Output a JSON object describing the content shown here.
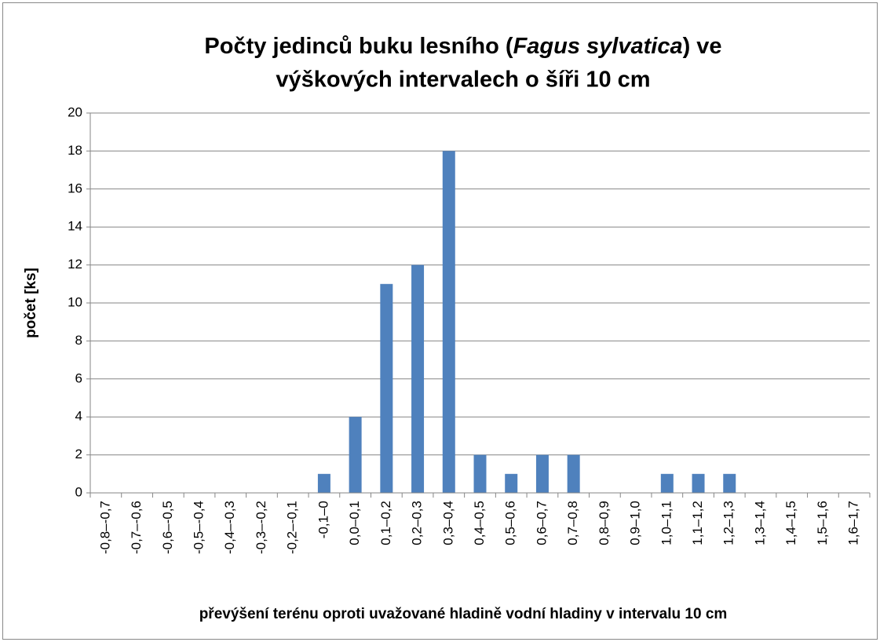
{
  "chart_data": {
    "type": "bar",
    "title_parts": [
      "Počty jedinců buku lesního (",
      "Fagus sylvatica",
      ") ve",
      "výškových intervalech o šíři 10 cm"
    ],
    "x_label": "převýšení terénu oproti uvažované hladině vodní hladiny v intervalu 10 cm",
    "y_label": "počet [ks]",
    "categories": [
      "-0,8–-0,7",
      "-0,7–-0,6",
      "-0,6–-0,5",
      "-0,5–-0,4",
      "-0,4–-0,3",
      "-0,3–-0,2",
      "-0,2–-0,1",
      "-0,1–0",
      "0,0–0,1",
      "0,1–0,2",
      "0,2–0,3",
      "0,3–0,4",
      "0,4–0,5",
      "0,5–0,6",
      "0,6–0,7",
      "0,7–0,8",
      "0,8–0,9",
      "0,9–1,0",
      "1,0–1,1",
      "1,1–1,2",
      "1,2–1,3",
      "1,3–1,4",
      "1,4–1,5",
      "1,5–1,6",
      "1,6–1,7"
    ],
    "values": [
      0,
      0,
      0,
      0,
      0,
      0,
      0,
      1,
      4,
      11,
      12,
      18,
      2,
      1,
      2,
      2,
      0,
      0,
      1,
      1,
      1,
      0,
      0,
      0,
      0
    ],
    "color": "#4f81bd",
    "ylim": [
      0,
      20
    ],
    "yticks": [
      0,
      2,
      4,
      6,
      8,
      10,
      12,
      14,
      16,
      18,
      20
    ],
    "grid": true
  }
}
